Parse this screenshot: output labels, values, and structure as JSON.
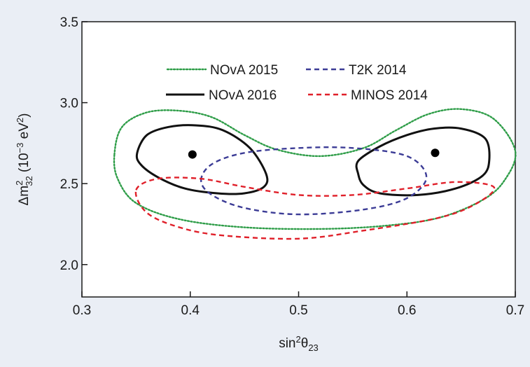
{
  "chart_data": {
    "type": "line",
    "xlabel": {
      "base": "sin",
      "sup": "2",
      "mid": "θ",
      "sub": "23"
    },
    "ylabel": {
      "pre": "Δm",
      "sup": "2",
      "sub": "32",
      "post": " (10",
      "unit_exp": "−3",
      "unit": " eV",
      "unit_sup": "2",
      "close": ")"
    },
    "xlim": [
      0.3,
      0.7
    ],
    "ylim": [
      1.8,
      3.5
    ],
    "x_ticks": [
      "0.3",
      "0.4",
      "0.5",
      "0.6",
      "0.7"
    ],
    "y_ticks": [
      "2.0",
      "2.5",
      "3.0",
      "3.5"
    ],
    "grid": false,
    "legend_position": "top-center",
    "series": [
      {
        "name": "NOvA 2015",
        "color": "#2e9d48",
        "style": "dotted",
        "points": [
          [
            0.33,
            2.68
          ],
          [
            0.337,
            2.85
          ],
          [
            0.36,
            2.94
          ],
          [
            0.39,
            2.95
          ],
          [
            0.42,
            2.91
          ],
          [
            0.45,
            2.8
          ],
          [
            0.48,
            2.71
          ],
          [
            0.52,
            2.67
          ],
          [
            0.56,
            2.72
          ],
          [
            0.59,
            2.83
          ],
          [
            0.62,
            2.93
          ],
          [
            0.65,
            2.96
          ],
          [
            0.68,
            2.9
          ],
          [
            0.7,
            2.7
          ],
          [
            0.69,
            2.52
          ],
          [
            0.67,
            2.4
          ],
          [
            0.63,
            2.29
          ],
          [
            0.58,
            2.24
          ],
          [
            0.52,
            2.22
          ],
          [
            0.45,
            2.23
          ],
          [
            0.39,
            2.28
          ],
          [
            0.35,
            2.38
          ],
          [
            0.333,
            2.53
          ],
          [
            0.33,
            2.68
          ]
        ]
      },
      {
        "name": "NOvA 2016",
        "color": "#111111",
        "style": "solid",
        "points": [
          [
            [
              0.351,
              2.69
            ],
            [
              0.36,
              2.8
            ],
            [
              0.38,
              2.85
            ],
            [
              0.405,
              2.86
            ],
            [
              0.43,
              2.83
            ],
            [
              0.455,
              2.72
            ],
            [
              0.47,
              2.56
            ],
            [
              0.468,
              2.48
            ],
            [
              0.45,
              2.44
            ],
            [
              0.425,
              2.44
            ],
            [
              0.395,
              2.47
            ],
            [
              0.37,
              2.54
            ],
            [
              0.354,
              2.62
            ],
            [
              0.351,
              2.69
            ]
          ],
          [
            [
              0.555,
              2.64
            ],
            [
              0.575,
              2.73
            ],
            [
              0.6,
              2.8
            ],
            [
              0.625,
              2.84
            ],
            [
              0.65,
              2.84
            ],
            [
              0.672,
              2.78
            ],
            [
              0.676,
              2.65
            ],
            [
              0.67,
              2.55
            ],
            [
              0.645,
              2.47
            ],
            [
              0.61,
              2.43
            ],
            [
              0.575,
              2.44
            ],
            [
              0.56,
              2.49
            ],
            [
              0.555,
              2.56
            ],
            [
              0.555,
              2.64
            ]
          ]
        ]
      },
      {
        "name": "T2K 2014",
        "color": "#3c3c96",
        "style": "dashed",
        "points": [
          [
            0.41,
            2.52
          ],
          [
            0.42,
            2.62
          ],
          [
            0.45,
            2.69
          ],
          [
            0.5,
            2.72
          ],
          [
            0.55,
            2.72
          ],
          [
            0.6,
            2.67
          ],
          [
            0.618,
            2.54
          ],
          [
            0.6,
            2.41
          ],
          [
            0.56,
            2.34
          ],
          [
            0.5,
            2.31
          ],
          [
            0.45,
            2.35
          ],
          [
            0.42,
            2.43
          ],
          [
            0.41,
            2.52
          ]
        ]
      },
      {
        "name": "MINOS 2014",
        "color": "#e0202a",
        "style": "dashed",
        "points": [
          [
            0.35,
            2.46
          ],
          [
            0.37,
            2.53
          ],
          [
            0.41,
            2.53
          ],
          [
            0.45,
            2.48
          ],
          [
            0.5,
            2.43
          ],
          [
            0.55,
            2.43
          ],
          [
            0.6,
            2.47
          ],
          [
            0.645,
            2.51
          ],
          [
            0.68,
            2.48
          ],
          [
            0.665,
            2.38
          ],
          [
            0.63,
            2.29
          ],
          [
            0.56,
            2.21
          ],
          [
            0.5,
            2.16
          ],
          [
            0.43,
            2.18
          ],
          [
            0.39,
            2.23
          ],
          [
            0.36,
            2.32
          ],
          [
            0.35,
            2.46
          ]
        ]
      }
    ],
    "best_fit_points": [
      [
        0.402,
        2.68
      ],
      [
        0.626,
        2.69
      ]
    ]
  }
}
